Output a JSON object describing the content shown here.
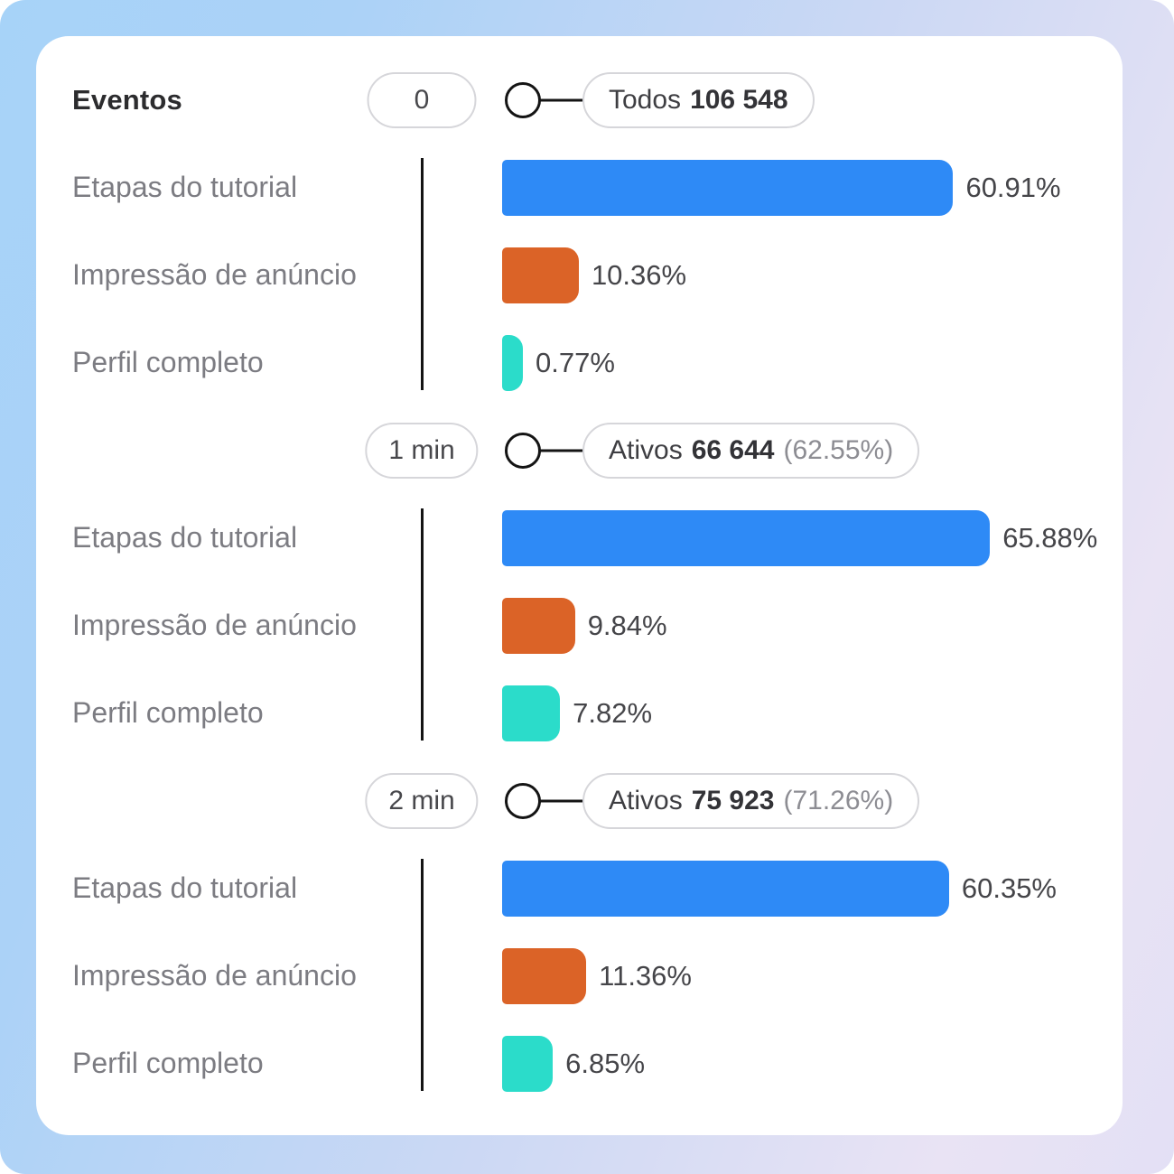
{
  "card": {
    "title": "Eventos"
  },
  "colors": {
    "blue": "#2e8af6",
    "orange": "#db6327",
    "teal": "#2bdcca",
    "line_black": "#141414",
    "pill_border": "#d6d6da",
    "label_gray": "#7c7c82"
  },
  "chart_data": {
    "type": "bar",
    "orientation": "horizontal",
    "unit": "percent",
    "xlim": [
      0,
      100
    ],
    "categories": [
      "Etapas do tutorial",
      "Impressão de anúncio",
      "Perfil completo"
    ],
    "legend_position": "none",
    "grid": false,
    "groups": [
      {
        "time": "0",
        "audience": {
          "prefix": "Todos",
          "value": "106 548",
          "pct": ""
        },
        "bars": [
          {
            "label": "Etapas do tutorial",
            "value": 60.91,
            "display": "60.91%",
            "color": "#2e8af6"
          },
          {
            "label": "Impressão de anúncio",
            "value": 10.36,
            "display": "10.36%",
            "color": "#db6327"
          },
          {
            "label": "Perfil completo",
            "value": 0.77,
            "display": "0.77%",
            "color": "#2bdcca"
          }
        ]
      },
      {
        "time": "1 min",
        "audience": {
          "prefix": "Ativos",
          "value": "66 644",
          "pct": "(62.55%)"
        },
        "bars": [
          {
            "label": "Etapas do tutorial",
            "value": 65.88,
            "display": "65.88%",
            "color": "#2e8af6"
          },
          {
            "label": "Impressão de anúncio",
            "value": 9.84,
            "display": "9.84%",
            "color": "#db6327"
          },
          {
            "label": "Perfil completo",
            "value": 7.82,
            "display": "7.82%",
            "color": "#2bdcca"
          }
        ]
      },
      {
        "time": "2 min",
        "audience": {
          "prefix": "Ativos",
          "value": "75 923",
          "pct": "(71.26%)"
        },
        "bars": [
          {
            "label": "Etapas do tutorial",
            "value": 60.35,
            "display": "60.35%",
            "color": "#2e8af6"
          },
          {
            "label": "Impressão de anúncio",
            "value": 11.36,
            "display": "11.36%",
            "color": "#db6327"
          },
          {
            "label": "Perfil completo",
            "value": 6.85,
            "display": "6.85%",
            "color": "#2bdcca"
          }
        ]
      }
    ]
  }
}
